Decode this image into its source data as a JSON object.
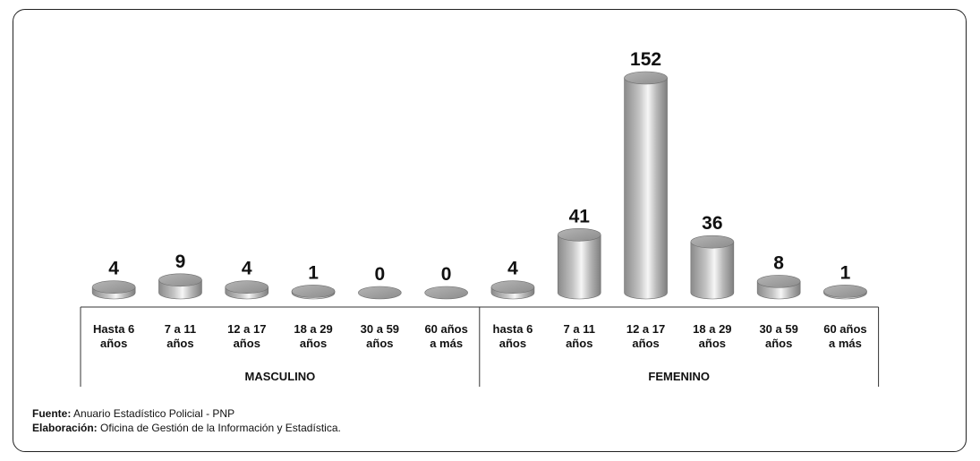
{
  "chart_data": {
    "type": "bar",
    "groups": [
      {
        "name": "MASCULINO",
        "categories": [
          "Hasta 6|años",
          "7 a 11|años",
          "12 a 17|años",
          "18 a 29|años",
          "30 a 59|años",
          "60 años|a más"
        ],
        "values": [
          4,
          9,
          4,
          1,
          0,
          0
        ]
      },
      {
        "name": "FEMENINO",
        "categories": [
          "hasta 6|años",
          "7 a 11|años",
          "12 a 17|años",
          "18 a 29|años",
          "30 a 59|años",
          "60 años|a más"
        ],
        "values": [
          4,
          41,
          152,
          36,
          8,
          1
        ]
      }
    ],
    "ylim": [
      0,
      152
    ],
    "grid": false,
    "bar_style": "3d-cylinder",
    "bar_color": "#9a9a9a"
  },
  "notes": {
    "source_label": "Fuente:",
    "source_text": " Anuario Estadístico Policial - PNP",
    "made_by_label": "Elaboración:",
    "made_by_text": " Oficina de Gestión de la Información y Estadística."
  }
}
